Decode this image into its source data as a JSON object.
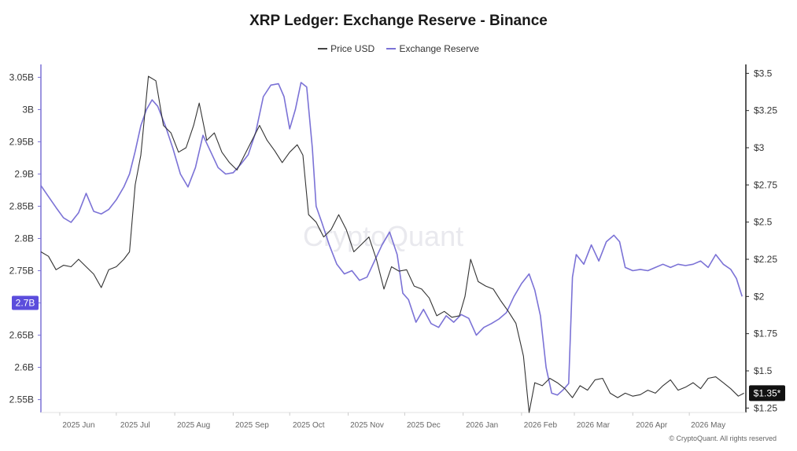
{
  "chart_data": {
    "type": "line",
    "title": "XRP Ledger: Exchange Reserve - Binance",
    "watermark": "CryptoQuant",
    "copyright": "© CryptoQuant. All rights reserved",
    "legend": [
      {
        "name": "Price USD",
        "color": "#444444"
      },
      {
        "name": "Exchange Reserve",
        "color": "#7b72d6"
      }
    ],
    "x_labels": [
      "2025 Jun",
      "2025 Jul",
      "2025 Aug",
      "2025 Sep",
      "2025 Oct",
      "2025 Nov",
      "2025 Dec",
      "2026 Jan",
      "2026 Feb",
      "2026 Mar",
      "2026 Apr",
      "2026 May"
    ],
    "x_label_dates": [
      "2025-06-01",
      "2025-07-01",
      "2025-08-01",
      "2025-09-01",
      "2025-10-01",
      "2025-11-01",
      "2025-12-01",
      "2026-01-01",
      "2026-02-01",
      "2026-03-01",
      "2026-04-01",
      "2026-05-01"
    ],
    "x_range": [
      "2025-05-22",
      "2026-05-31"
    ],
    "left_axis": {
      "unit": "B",
      "ylim": [
        2.53,
        3.07
      ],
      "ticks": [
        "2.55B",
        "2.6B",
        "2.65B",
        "2.7B",
        "2.75B",
        "2.8B",
        "2.85B",
        "2.9B",
        "2.95B",
        "3B",
        "3.05B"
      ],
      "tick_values": [
        2.55,
        2.6,
        2.65,
        2.7,
        2.75,
        2.8,
        2.85,
        2.9,
        2.95,
        3.0,
        3.05
      ],
      "current_label": "2.7B",
      "color": "#6a5be0"
    },
    "right_axis": {
      "ylim": [
        1.22,
        3.56
      ],
      "ticks": [
        "$1.25",
        "$1.5",
        "$1.75",
        "$2",
        "$2.25",
        "$2.5",
        "$2.75",
        "$3",
        "$3.25",
        "$3.5"
      ],
      "tick_values": [
        1.25,
        1.5,
        1.75,
        2.0,
        2.25,
        2.5,
        2.75,
        3.0,
        3.25,
        3.5
      ],
      "current_label": "$1.35*",
      "color": "#111111"
    },
    "series": [
      {
        "name": "Exchange Reserve",
        "axis": "left",
        "color": "#7b72d6",
        "points": [
          [
            "2025-05-22",
            2.882
          ],
          [
            "2025-05-26",
            2.865
          ],
          [
            "2025-05-30",
            2.848
          ],
          [
            "2025-06-03",
            2.832
          ],
          [
            "2025-06-07",
            2.825
          ],
          [
            "2025-06-11",
            2.84
          ],
          [
            "2025-06-15",
            2.87
          ],
          [
            "2025-06-19",
            2.842
          ],
          [
            "2025-06-23",
            2.838
          ],
          [
            "2025-06-27",
            2.845
          ],
          [
            "2025-07-01",
            2.86
          ],
          [
            "2025-07-05",
            2.88
          ],
          [
            "2025-07-08",
            2.9
          ],
          [
            "2025-07-11",
            2.935
          ],
          [
            "2025-07-14",
            2.975
          ],
          [
            "2025-07-17",
            3.0
          ],
          [
            "2025-07-20",
            3.015
          ],
          [
            "2025-07-23",
            3.005
          ],
          [
            "2025-07-27",
            2.975
          ],
          [
            "2025-07-31",
            2.94
          ],
          [
            "2025-08-04",
            2.9
          ],
          [
            "2025-08-08",
            2.88
          ],
          [
            "2025-08-12",
            2.91
          ],
          [
            "2025-08-16",
            2.96
          ],
          [
            "2025-08-20",
            2.935
          ],
          [
            "2025-08-24",
            2.91
          ],
          [
            "2025-08-28",
            2.9
          ],
          [
            "2025-09-01",
            2.902
          ],
          [
            "2025-09-05",
            2.915
          ],
          [
            "2025-09-09",
            2.93
          ],
          [
            "2025-09-13",
            2.965
          ],
          [
            "2025-09-17",
            3.02
          ],
          [
            "2025-09-21",
            3.038
          ],
          [
            "2025-09-25",
            3.04
          ],
          [
            "2025-09-28",
            3.02
          ],
          [
            "2025-10-01",
            2.97
          ],
          [
            "2025-10-04",
            3.0
          ],
          [
            "2025-10-07",
            3.042
          ],
          [
            "2025-10-10",
            3.035
          ],
          [
            "2025-10-13",
            2.94
          ],
          [
            "2025-10-15",
            2.85
          ],
          [
            "2025-10-18",
            2.825
          ],
          [
            "2025-10-22",
            2.79
          ],
          [
            "2025-10-26",
            2.76
          ],
          [
            "2025-10-30",
            2.745
          ],
          [
            "2025-11-03",
            2.75
          ],
          [
            "2025-11-07",
            2.735
          ],
          [
            "2025-11-11",
            2.74
          ],
          [
            "2025-11-15",
            2.765
          ],
          [
            "2025-11-19",
            2.79
          ],
          [
            "2025-11-23",
            2.81
          ],
          [
            "2025-11-27",
            2.775
          ],
          [
            "2025-11-30",
            2.715
          ],
          [
            "2025-12-03",
            2.705
          ],
          [
            "2025-12-07",
            2.67
          ],
          [
            "2025-12-11",
            2.69
          ],
          [
            "2025-12-15",
            2.668
          ],
          [
            "2025-12-19",
            2.662
          ],
          [
            "2025-12-23",
            2.68
          ],
          [
            "2025-12-27",
            2.67
          ],
          [
            "2025-12-31",
            2.682
          ],
          [
            "2026-01-04",
            2.676
          ],
          [
            "2026-01-08",
            2.65
          ],
          [
            "2026-01-12",
            2.662
          ],
          [
            "2026-01-16",
            2.668
          ],
          [
            "2026-01-20",
            2.675
          ],
          [
            "2026-01-24",
            2.685
          ],
          [
            "2026-01-28",
            2.71
          ],
          [
            "2026-02-01",
            2.73
          ],
          [
            "2026-02-05",
            2.745
          ],
          [
            "2026-02-08",
            2.72
          ],
          [
            "2026-02-11",
            2.68
          ],
          [
            "2026-02-14",
            2.6
          ],
          [
            "2026-02-17",
            2.56
          ],
          [
            "2026-02-20",
            2.557
          ],
          [
            "2026-02-23",
            2.565
          ],
          [
            "2026-02-26",
            2.575
          ],
          [
            "2026-02-28",
            2.74
          ],
          [
            "2026-03-02",
            2.775
          ],
          [
            "2026-03-06",
            2.76
          ],
          [
            "2026-03-10",
            2.79
          ],
          [
            "2026-03-14",
            2.765
          ],
          [
            "2026-03-18",
            2.795
          ],
          [
            "2026-03-22",
            2.805
          ],
          [
            "2026-03-25",
            2.795
          ],
          [
            "2026-03-28",
            2.755
          ],
          [
            "2026-04-01",
            2.75
          ],
          [
            "2026-04-05",
            2.752
          ],
          [
            "2026-04-09",
            2.75
          ],
          [
            "2026-04-13",
            2.755
          ],
          [
            "2026-04-17",
            2.76
          ],
          [
            "2026-04-21",
            2.755
          ],
          [
            "2026-04-25",
            2.76
          ],
          [
            "2026-04-29",
            2.758
          ],
          [
            "2026-05-03",
            2.76
          ],
          [
            "2026-05-07",
            2.765
          ],
          [
            "2026-05-11",
            2.755
          ],
          [
            "2026-05-15",
            2.775
          ],
          [
            "2026-05-19",
            2.76
          ],
          [
            "2026-05-23",
            2.752
          ],
          [
            "2026-05-26",
            2.738
          ],
          [
            "2026-05-29",
            2.71
          ]
        ]
      },
      {
        "name": "Price USD",
        "axis": "right",
        "color": "#333333",
        "points": [
          [
            "2025-05-22",
            2.3
          ],
          [
            "2025-05-26",
            2.27
          ],
          [
            "2025-05-30",
            2.18
          ],
          [
            "2025-06-03",
            2.21
          ],
          [
            "2025-06-07",
            2.2
          ],
          [
            "2025-06-11",
            2.25
          ],
          [
            "2025-06-15",
            2.2
          ],
          [
            "2025-06-19",
            2.15
          ],
          [
            "2025-06-23",
            2.06
          ],
          [
            "2025-06-27",
            2.18
          ],
          [
            "2025-07-01",
            2.2
          ],
          [
            "2025-07-05",
            2.25
          ],
          [
            "2025-07-08",
            2.3
          ],
          [
            "2025-07-11",
            2.75
          ],
          [
            "2025-07-14",
            2.95
          ],
          [
            "2025-07-18",
            3.48
          ],
          [
            "2025-07-22",
            3.45
          ],
          [
            "2025-07-26",
            3.15
          ],
          [
            "2025-07-30",
            3.1
          ],
          [
            "2025-08-03",
            2.97
          ],
          [
            "2025-08-07",
            3.0
          ],
          [
            "2025-08-11",
            3.15
          ],
          [
            "2025-08-14",
            3.3
          ],
          [
            "2025-08-18",
            3.05
          ],
          [
            "2025-08-22",
            3.1
          ],
          [
            "2025-08-26",
            2.97
          ],
          [
            "2025-08-30",
            2.9
          ],
          [
            "2025-09-03",
            2.85
          ],
          [
            "2025-09-07",
            2.95
          ],
          [
            "2025-09-11",
            3.05
          ],
          [
            "2025-09-15",
            3.15
          ],
          [
            "2025-09-19",
            3.05
          ],
          [
            "2025-09-23",
            2.98
          ],
          [
            "2025-09-27",
            2.9
          ],
          [
            "2025-10-01",
            2.97
          ],
          [
            "2025-10-05",
            3.02
          ],
          [
            "2025-10-08",
            2.95
          ],
          [
            "2025-10-11",
            2.55
          ],
          [
            "2025-10-15",
            2.5
          ],
          [
            "2025-10-19",
            2.4
          ],
          [
            "2025-10-23",
            2.45
          ],
          [
            "2025-10-27",
            2.55
          ],
          [
            "2025-10-31",
            2.45
          ],
          [
            "2025-11-04",
            2.3
          ],
          [
            "2025-11-08",
            2.35
          ],
          [
            "2025-11-12",
            2.4
          ],
          [
            "2025-11-16",
            2.25
          ],
          [
            "2025-11-20",
            2.05
          ],
          [
            "2025-11-24",
            2.2
          ],
          [
            "2025-11-28",
            2.17
          ],
          [
            "2025-12-02",
            2.18
          ],
          [
            "2025-12-06",
            2.07
          ],
          [
            "2025-12-10",
            2.05
          ],
          [
            "2025-12-14",
            1.99
          ],
          [
            "2025-12-18",
            1.87
          ],
          [
            "2025-12-22",
            1.9
          ],
          [
            "2025-12-26",
            1.86
          ],
          [
            "2025-12-30",
            1.87
          ],
          [
            "2026-01-02",
            2.0
          ],
          [
            "2026-01-05",
            2.25
          ],
          [
            "2026-01-09",
            2.1
          ],
          [
            "2026-01-13",
            2.07
          ],
          [
            "2026-01-17",
            2.05
          ],
          [
            "2026-01-21",
            1.97
          ],
          [
            "2026-01-25",
            1.9
          ],
          [
            "2026-01-29",
            1.82
          ],
          [
            "2026-02-02",
            1.6
          ],
          [
            "2026-02-05",
            1.22
          ],
          [
            "2026-02-08",
            1.42
          ],
          [
            "2026-02-12",
            1.4
          ],
          [
            "2026-02-16",
            1.45
          ],
          [
            "2026-02-20",
            1.42
          ],
          [
            "2026-02-24",
            1.38
          ],
          [
            "2026-02-28",
            1.32
          ],
          [
            "2026-03-04",
            1.4
          ],
          [
            "2026-03-08",
            1.37
          ],
          [
            "2026-03-12",
            1.44
          ],
          [
            "2026-03-16",
            1.45
          ],
          [
            "2026-03-20",
            1.35
          ],
          [
            "2026-03-24",
            1.32
          ],
          [
            "2026-03-28",
            1.35
          ],
          [
            "2026-04-01",
            1.33
          ],
          [
            "2026-04-05",
            1.34
          ],
          [
            "2026-04-09",
            1.37
          ],
          [
            "2026-04-13",
            1.35
          ],
          [
            "2026-04-17",
            1.4
          ],
          [
            "2026-04-21",
            1.44
          ],
          [
            "2026-04-25",
            1.37
          ],
          [
            "2026-04-29",
            1.39
          ],
          [
            "2026-05-03",
            1.42
          ],
          [
            "2026-05-07",
            1.38
          ],
          [
            "2026-05-11",
            1.45
          ],
          [
            "2026-05-15",
            1.46
          ],
          [
            "2026-05-19",
            1.42
          ],
          [
            "2026-05-23",
            1.38
          ],
          [
            "2026-05-27",
            1.33
          ],
          [
            "2026-05-30",
            1.35
          ]
        ]
      }
    ]
  }
}
